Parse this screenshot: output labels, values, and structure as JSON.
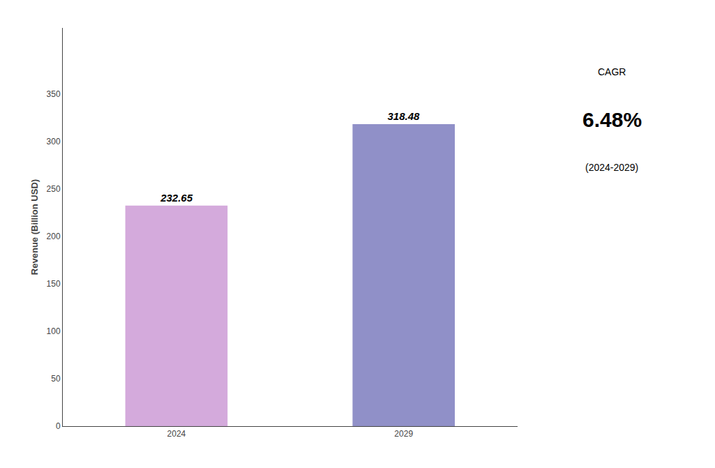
{
  "chart_data": {
    "type": "bar",
    "categories": [
      "2024",
      "2029"
    ],
    "values": [
      232.65,
      318.48
    ],
    "colors": [
      "#D4AADC",
      "#9090C8"
    ],
    "ylabel": "Revenue (Billion USD)",
    "ylim": [
      0,
      420
    ],
    "yticks": [
      0,
      50,
      100,
      150,
      200,
      250,
      300,
      350
    ],
    "data_labels": true,
    "grid": false,
    "annotations": [
      "CAGR",
      "6.48%",
      "(2024-2029)"
    ]
  }
}
